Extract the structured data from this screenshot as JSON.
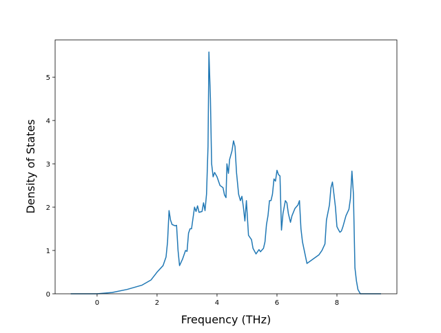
{
  "chart_data": {
    "type": "line",
    "xlabel": "Frequency (THz)",
    "ylabel": "Density of States",
    "xlim": [
      -1.4,
      10.0
    ],
    "ylim": [
      0,
      5.86
    ],
    "xticks": [
      0,
      2,
      4,
      6,
      8
    ],
    "yticks": [
      0,
      1,
      2,
      3,
      4,
      5
    ],
    "series": [
      {
        "color": "#1f77b4",
        "x": [
          -0.88,
          0,
          0.5,
          1.0,
          1.5,
          1.8,
          2.0,
          2.2,
          2.3,
          2.35,
          2.4,
          2.45,
          2.5,
          2.6,
          2.65,
          2.7,
          2.75,
          2.85,
          2.95,
          3.0,
          3.05,
          3.1,
          3.15,
          3.25,
          3.3,
          3.35,
          3.4,
          3.5,
          3.55,
          3.6,
          3.65,
          3.7,
          3.73,
          3.78,
          3.82,
          3.87,
          3.92,
          4.0,
          4.1,
          4.2,
          4.25,
          4.3,
          4.33,
          4.38,
          4.42,
          4.5,
          4.55,
          4.6,
          4.65,
          4.72,
          4.78,
          4.83,
          4.88,
          4.93,
          4.98,
          5.05,
          5.1,
          5.15,
          5.2,
          5.3,
          5.4,
          5.45,
          5.55,
          5.6,
          5.65,
          5.7,
          5.75,
          5.8,
          5.85,
          5.9,
          5.95,
          6.0,
          6.05,
          6.1,
          6.15,
          6.2,
          6.28,
          6.33,
          6.38,
          6.45,
          6.5,
          6.6,
          6.7,
          6.75,
          6.8,
          6.85,
          7.0,
          7.2,
          7.4,
          7.5,
          7.6,
          7.65,
          7.75,
          7.8,
          7.85,
          7.9,
          7.95,
          8.0,
          8.05,
          8.1,
          8.15,
          8.2,
          8.3,
          8.4,
          8.45,
          8.5,
          8.55,
          8.6,
          8.65,
          8.7,
          8.78,
          9.47
        ],
        "values": [
          0,
          0,
          0.03,
          0.1,
          0.2,
          0.32,
          0.5,
          0.65,
          0.85,
          1.2,
          1.92,
          1.7,
          1.6,
          1.57,
          1.58,
          1.0,
          0.65,
          0.8,
          1.0,
          0.98,
          1.4,
          1.5,
          1.5,
          2.0,
          1.9,
          2.03,
          1.88,
          1.9,
          2.1,
          1.92,
          2.3,
          3.4,
          5.58,
          4.5,
          3.0,
          2.7,
          2.8,
          2.7,
          2.5,
          2.45,
          2.28,
          2.22,
          3.0,
          2.78,
          3.1,
          3.3,
          3.53,
          3.4,
          2.8,
          2.3,
          2.15,
          2.25,
          2.0,
          1.68,
          2.15,
          1.35,
          1.3,
          1.25,
          1.05,
          0.92,
          1.02,
          0.97,
          1.05,
          1.2,
          1.6,
          1.8,
          2.15,
          2.15,
          2.3,
          2.65,
          2.6,
          2.85,
          2.75,
          2.72,
          1.47,
          1.85,
          2.15,
          2.1,
          1.85,
          1.65,
          1.8,
          1.97,
          2.05,
          2.15,
          1.5,
          1.2,
          0.7,
          0.8,
          0.9,
          1.0,
          1.15,
          1.7,
          2.05,
          2.45,
          2.58,
          2.3,
          2.0,
          1.55,
          1.48,
          1.42,
          1.45,
          1.55,
          1.8,
          1.95,
          2.2,
          2.83,
          2.3,
          0.6,
          0.3,
          0.1,
          0,
          0
        ]
      }
    ]
  }
}
